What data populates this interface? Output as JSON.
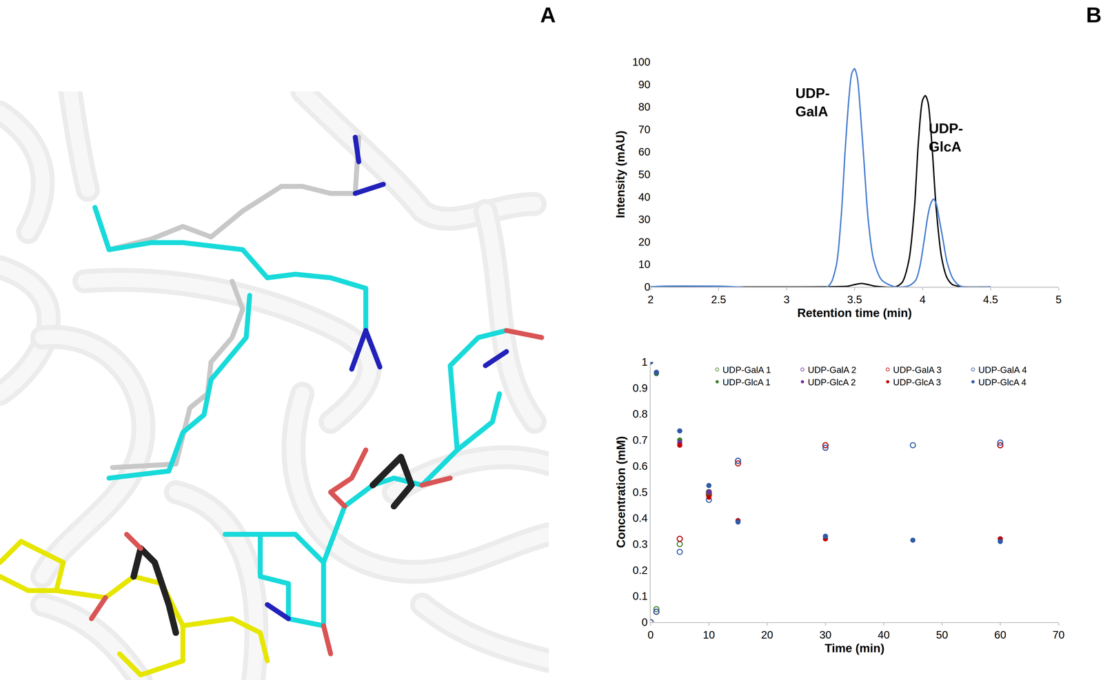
{
  "panel_labels": [
    "A",
    "B"
  ],
  "chart_data": [
    {
      "type": "line",
      "x_label": "Retention time (min)",
      "y_label": "Intensity (mAU)",
      "xlim": [
        2,
        5
      ],
      "xticks": [
        2,
        2.5,
        3,
        3.5,
        4,
        4.5,
        5
      ],
      "ylim": [
        0,
        100
      ],
      "yticks": [
        0,
        10,
        20,
        30,
        40,
        50,
        60,
        70,
        80,
        90,
        100
      ],
      "grid": false,
      "annotations": [
        "UDP-\nGalA",
        "UDP-\nGlcA"
      ],
      "series": [
        {
          "color": "#000000",
          "x": [
            2,
            3.3,
            3.45,
            3.5,
            3.55,
            3.6,
            3.65,
            3.8,
            3.85,
            3.9,
            3.94,
            3.97,
            4.0,
            4.02,
            4.04,
            4.07,
            4.1,
            4.14,
            4.18,
            4.22,
            4.3,
            4.5
          ],
          "values": [
            0,
            0,
            0.3,
            1,
            1.5,
            1,
            0.3,
            0,
            2,
            12,
            35,
            65,
            83,
            85,
            82,
            62,
            35,
            13,
            4,
            1,
            0,
            0
          ]
        },
        {
          "color": "#4a7fd0",
          "x": [
            2,
            2.1,
            2.5,
            3.3,
            3.36,
            3.4,
            3.43,
            3.46,
            3.48,
            3.5,
            3.52,
            3.54,
            3.57,
            3.6,
            3.64,
            3.7,
            3.8,
            3.9,
            3.95,
            3.98,
            4.01,
            4.04,
            4.06,
            4.08,
            4.1,
            4.12,
            4.15,
            4.18,
            4.22,
            4.26,
            4.3,
            4.5
          ],
          "values": [
            0,
            0.3,
            0.3,
            0,
            8,
            30,
            60,
            85,
            95,
            97,
            93,
            80,
            55,
            30,
            12,
            3,
            0,
            0.5,
            3,
            9,
            20,
            32,
            37,
            39,
            37,
            31,
            21,
            11,
            4,
            1,
            0,
            0
          ]
        }
      ]
    },
    {
      "type": "scatter",
      "x_label": "Time (min)",
      "y_label": "Concentration (mM)",
      "x": [
        0,
        1,
        5,
        10,
        15,
        30,
        45,
        60
      ],
      "xlim": [
        0,
        70
      ],
      "xticks": [
        0,
        10,
        20,
        30,
        40,
        50,
        60,
        70
      ],
      "ylim": [
        0,
        1
      ],
      "yticks": [
        0,
        0.1,
        0.2,
        0.3,
        0.4,
        0.5,
        0.6,
        0.7,
        0.8,
        0.9,
        1
      ],
      "grid": false,
      "legend": "top",
      "series": [
        {
          "name": "UDP-GalA 1",
          "color": "#3a7d2a",
          "marker": "open",
          "values": [
            0,
            0.05,
            0.3,
            0.5,
            0.62,
            0.68,
            null,
            0.68
          ]
        },
        {
          "name": "UDP-GalA 2",
          "color": "#7030a0",
          "marker": "open",
          "values": [
            0,
            0.04,
            0.32,
            0.49,
            0.62,
            0.67,
            null,
            0.68
          ]
        },
        {
          "name": "UDP-GalA 3",
          "color": "#c00000",
          "marker": "open",
          "values": [
            0,
            0.04,
            0.32,
            0.49,
            0.61,
            0.68,
            null,
            0.68
          ]
        },
        {
          "name": "UDP-GalA 4",
          "color": "#2e5aa8",
          "marker": "open",
          "values": [
            0,
            0.04,
            0.27,
            0.47,
            0.62,
            0.67,
            0.68,
            0.69
          ]
        },
        {
          "name": "UDP-GlcA 1",
          "color": "#3a7d2a",
          "marker": "filled",
          "values": [
            1,
            0.955,
            0.7,
            0.49,
            0.39,
            0.33,
            null,
            0.32
          ]
        },
        {
          "name": "UDP-GlcA 2",
          "color": "#7030a0",
          "marker": "filled",
          "values": [
            1,
            0.96,
            0.69,
            0.5,
            0.39,
            0.33,
            null,
            0.32
          ]
        },
        {
          "name": "UDP-GlcA 3",
          "color": "#c00000",
          "marker": "filled",
          "values": [
            1,
            0.96,
            0.68,
            0.48,
            0.39,
            0.32,
            null,
            0.32
          ]
        },
        {
          "name": "UDP-GlcA 4",
          "color": "#2e5aa8",
          "marker": "filled",
          "values": [
            1,
            0.96,
            0.735,
            0.525,
            0.385,
            0.33,
            0.315,
            0.31
          ]
        }
      ]
    }
  ]
}
